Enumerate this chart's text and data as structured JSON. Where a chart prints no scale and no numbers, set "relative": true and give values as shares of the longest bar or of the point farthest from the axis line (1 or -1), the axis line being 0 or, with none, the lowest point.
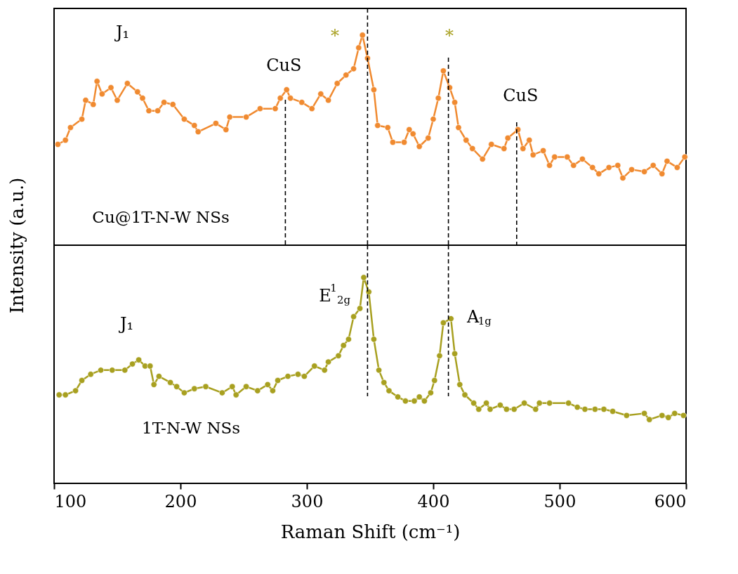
{
  "chart_data": [
    {
      "type": "line",
      "relative": true,
      "ylabel": "Intensity (a.u.)",
      "xlim": [
        100,
        600
      ],
      "tick_labels": false,
      "marker": "circle",
      "line_style": "solid",
      "x": [
        103,
        109,
        113,
        122,
        125,
        131,
        134,
        138,
        145,
        150,
        158,
        166,
        170,
        175,
        182,
        187,
        194,
        203,
        211,
        214,
        228,
        236,
        239,
        252,
        263,
        275,
        279,
        284,
        287,
        296,
        304,
        311,
        317,
        324,
        331,
        337,
        341,
        344,
        348,
        353,
        356,
        364,
        368,
        377,
        381,
        384,
        389,
        396,
        400,
        404,
        408,
        413,
        417,
        420,
        426,
        431,
        439,
        446,
        456,
        459,
        467,
        471,
        476,
        479,
        487,
        492,
        496,
        506,
        511,
        518,
        526,
        531,
        539,
        546,
        550,
        557,
        567,
        574,
        581,
        585,
        593,
        599
      ],
      "series": [
        {
          "name": "Cu@1T-N-W NSs",
          "color": "#f08a30",
          "values": [
            0.48,
            0.5,
            0.56,
            0.6,
            0.69,
            0.67,
            0.78,
            0.72,
            0.75,
            0.69,
            0.77,
            0.73,
            0.7,
            0.64,
            0.64,
            0.68,
            0.67,
            0.6,
            0.57,
            0.54,
            0.58,
            0.55,
            0.61,
            0.61,
            0.65,
            0.65,
            0.7,
            0.74,
            0.7,
            0.68,
            0.65,
            0.72,
            0.69,
            0.77,
            0.81,
            0.84,
            0.94,
            1.0,
            0.89,
            0.74,
            0.57,
            0.56,
            0.49,
            0.49,
            0.55,
            0.53,
            0.47,
            0.51,
            0.6,
            0.7,
            0.83,
            0.75,
            0.68,
            0.56,
            0.5,
            0.46,
            0.41,
            0.48,
            0.46,
            0.51,
            0.55,
            0.46,
            0.5,
            0.43,
            0.45,
            0.38,
            0.42,
            0.42,
            0.38,
            0.41,
            0.37,
            0.34,
            0.37,
            0.38,
            0.32,
            0.36,
            0.35,
            0.38,
            0.34,
            0.4,
            0.37,
            0.42
          ]
        }
      ],
      "ref_lines": [
        {
          "axis": "x",
          "value": 283,
          "color": "#000000",
          "line_style": "dashed"
        },
        {
          "axis": "x",
          "value": 348,
          "color": "#000000",
          "line_style": "dashed"
        },
        {
          "axis": "x",
          "value": 412,
          "color": "#000000",
          "line_style": "dashed"
        },
        {
          "axis": "x",
          "value": 466,
          "color": "#000000",
          "line_style": "dashed"
        }
      ],
      "annotations": [
        "J₁",
        "CuS",
        "*",
        "*",
        "CuS"
      ]
    },
    {
      "type": "line",
      "relative": true,
      "xlabel": "Raman Shift (cm⁻¹)",
      "xlim": [
        100,
        600
      ],
      "xticks": [
        100,
        200,
        300,
        400,
        500,
        600
      ],
      "tick_labels": "x",
      "marker": "circle",
      "line_style": "solid",
      "x": [
        104,
        109,
        117,
        122,
        129,
        137,
        146,
        156,
        162,
        167,
        172,
        176,
        179,
        183,
        192,
        197,
        203,
        211,
        220,
        233,
        241,
        244,
        252,
        261,
        269,
        273,
        277,
        285,
        293,
        298,
        306,
        314,
        317,
        325,
        329,
        333,
        337,
        342,
        345,
        349,
        353,
        357,
        361,
        365,
        372,
        378,
        385,
        389,
        393,
        398,
        401,
        405,
        408,
        414,
        417,
        421,
        425,
        432,
        436,
        442,
        445,
        453,
        458,
        464,
        472,
        481,
        484,
        492,
        507,
        514,
        520,
        528,
        535,
        542,
        553,
        567,
        571,
        581,
        586,
        591,
        598
      ],
      "series": [
        {
          "name": "1T-N-W NSs",
          "color": "#a8a020",
          "values": [
            0.43,
            0.43,
            0.45,
            0.5,
            0.53,
            0.55,
            0.55,
            0.55,
            0.58,
            0.6,
            0.57,
            0.57,
            0.48,
            0.52,
            0.49,
            0.47,
            0.44,
            0.46,
            0.47,
            0.44,
            0.47,
            0.43,
            0.47,
            0.45,
            0.48,
            0.45,
            0.5,
            0.52,
            0.53,
            0.52,
            0.57,
            0.55,
            0.59,
            0.62,
            0.67,
            0.7,
            0.81,
            0.85,
            1.0,
            0.93,
            0.7,
            0.55,
            0.49,
            0.45,
            0.42,
            0.4,
            0.4,
            0.42,
            0.4,
            0.44,
            0.5,
            0.62,
            0.78,
            0.8,
            0.63,
            0.48,
            0.43,
            0.39,
            0.36,
            0.39,
            0.36,
            0.38,
            0.36,
            0.36,
            0.39,
            0.36,
            0.39,
            0.39,
            0.39,
            0.37,
            0.36,
            0.36,
            0.36,
            0.35,
            0.33,
            0.34,
            0.31,
            0.33,
            0.32,
            0.34,
            0.33
          ]
        }
      ],
      "ref_lines": [
        {
          "axis": "x",
          "value": 348,
          "color": "#000000",
          "line_style": "dashed"
        },
        {
          "axis": "x",
          "value": 412,
          "color": "#000000",
          "line_style": "dashed"
        }
      ],
      "annotations": [
        "J₁",
        "E$^{1}$$_{2g}$",
        "A$_{1g}$"
      ]
    }
  ]
}
